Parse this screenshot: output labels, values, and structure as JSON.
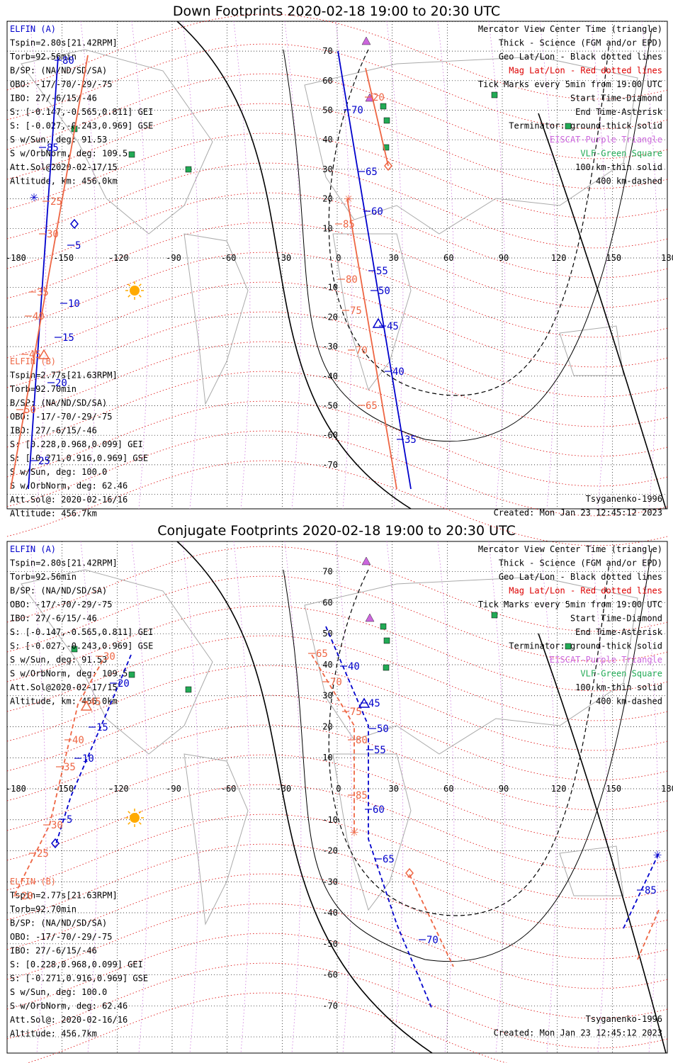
{
  "panels": [
    {
      "title": "Down Footprints 2020-02-18 19:00 to 20:30 UTC",
      "elfin_a": [
        "ELFIN (A)",
        "Tspin=2.80s[21.42RPM]",
        "Torb=92.56min",
        "B/SP: (NA/ND/SD/SA)",
        "OBO: -17/-70/-29/-75",
        "IBO: 27/-6/15/-46",
        "S: [-0.147,-0.565,0.811] GEI",
        "S: [-0.027,-0.243,0.969] GSE",
        "S w/Sun, deg: 91.53",
        "S w/OrbNorm, deg: 109.5",
        "Att.Sol@2020-02-17/15",
        "Altitude, km: 456.0km"
      ],
      "elfin_b": [
        "ELFIN (B)",
        "Tspin=2.77s[21.63RPM]",
        "Torb=92.70min",
        "B/SP: (NA/ND/SD/SA)",
        "OBO: -17/-70/-29/-75",
        "IBO: 27/-6/15/-46",
        "S: [0.228,0.968,0.099] GEI",
        "S: [-0.271,0.916,0.969] GSE",
        "S w/Sun, deg: 100.0",
        "S w/OrbNorm, deg: 62.46",
        "Att.Sol@: 2020-02-16/16",
        "Altitude: 456.7km"
      ],
      "footer_left": "",
      "footer_right": [
        "Tsyganenko-1996",
        "Created: Mon Jan 23 12:45:12 2023"
      ]
    },
    {
      "title": "Conjugate Footprints 2020-02-18 19:00 to 20:30 UTC",
      "elfin_a": [
        "ELFIN (A)",
        "Tspin=2.80s[21.42RPM]",
        "Torb=92.56min",
        "B/SP: (NA/ND/SD/SA)",
        "OBO: -17/-70/-29/-75",
        "IBO: 27/-6/15/-46",
        "S: [-0.147,-0.565,0.811] GEI",
        "S: [-0.027,-0.243,0.969] GSE",
        "S w/Sun, deg: 91.53",
        "S w/OrbNorm, deg: 109.5",
        "Att.Sol@2020-02-17/15",
        "Altitude, km: 456.0km"
      ],
      "elfin_b": [
        "ELFIN (B)",
        "Tspin=2.77s[21.63RPM]",
        "Torb=92.70min",
        "B/SP: (NA/ND/SD/SA)",
        "OBO: -17/-70/-29/-75",
        "IBO: 27/-6/15/-46",
        "S: [0.228,0.968,0.099] GEI",
        "S: [-0.271,0.916,0.969] GSE",
        "S w/Sun, deg: 100.0",
        "S w/OrbNorm, deg: 62.46",
        "Att.Sol@: 2020-02-16/16",
        "Altitude: 456.7km"
      ],
      "footer_right": [
        "Tsyganenko-1996",
        "Created: Mon Jan 23 12:45:12 2023"
      ]
    }
  ],
  "legend": [
    {
      "text": "Mercator View Center Time (triangle)",
      "color": "#000000"
    },
    {
      "text": "Thick - Science (FGM and/or EPD)",
      "color": "#000000"
    },
    {
      "text": "Geo Lat/Lon - Black dotted lines",
      "color": "#000000"
    },
    {
      "text": "Mag Lat/Lon - Red dotted lines",
      "color": "#dd0000"
    },
    {
      "text": "Tick Marks every 5min from 19:00 UTC",
      "color": "#000000"
    },
    {
      "text": "Start Time-Diamond",
      "color": "#000000"
    },
    {
      "text": "End Time-Asterisk",
      "color": "#000000"
    },
    {
      "text": "Terminator: ground-thick solid",
      "color": "#000000"
    },
    {
      "text": "EISCAT-Purple Triangle",
      "color": "#cc66dd"
    },
    {
      "text": "VLF-Green Square",
      "color": "#22aa55"
    },
    {
      "text": "100 km-thin solid",
      "color": "#000000"
    },
    {
      "text": "400 km-dashed",
      "color": "#000000"
    }
  ],
  "map": {
    "lon_ticks": [
      "-180",
      "-150",
      "-120",
      "-90",
      "-60",
      "-30",
      "0",
      "30",
      "60",
      "90",
      "120",
      "150",
      "180"
    ],
    "lat_ticks": [
      "70",
      "60",
      "50",
      "40",
      "30",
      "20",
      "10",
      "0",
      "-10",
      "-20",
      "-30",
      "-40",
      "-50",
      "-60",
      "-70"
    ],
    "colors": {
      "elfin_a": "#0000cc",
      "elfin_b": "#ee6644",
      "terminator": "#000000",
      "geo_grid": "#000000",
      "mag_grid": "#dd0000",
      "eiscat": "#cc66dd",
      "vlf": "#22aa55",
      "sun": "#ffaa00"
    }
  },
  "down_tracks": {
    "a_labels": [
      "80",
      "85",
      "5",
      "10",
      "15",
      "20",
      "25",
      "70",
      "65",
      "60",
      "55",
      "50",
      "45",
      "40",
      "35"
    ],
    "b_labels": [
      "25",
      "30",
      "35",
      "40",
      "45",
      "50",
      "20",
      "85",
      "80",
      "75",
      "70",
      "65"
    ]
  },
  "conj_tracks": {
    "a_labels": [
      "20",
      "15",
      "10",
      "5",
      "40",
      "45",
      "50",
      "55",
      "60",
      "65",
      "70",
      "85"
    ],
    "b_labels": [
      "30",
      "45",
      "40",
      "35",
      "30",
      "25",
      "20",
      "65",
      "70",
      "75",
      "80",
      "85"
    ]
  }
}
